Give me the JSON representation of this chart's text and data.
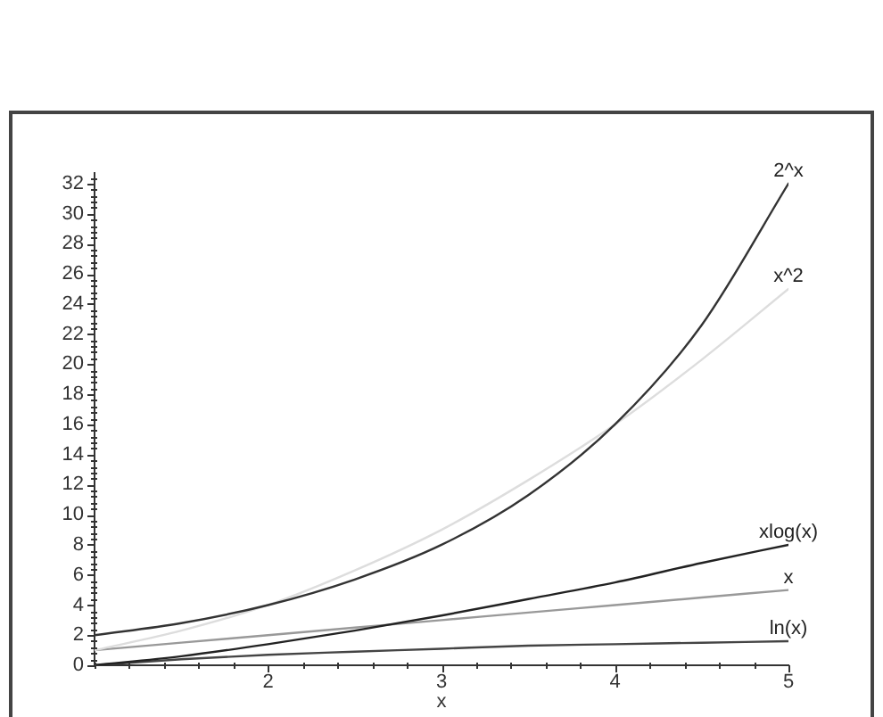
{
  "chart_data": {
    "type": "line",
    "xlabel": "x",
    "x": [
      1,
      1.5,
      2,
      2.5,
      3,
      3.5,
      4,
      4.5,
      5
    ],
    "series": [
      {
        "name": "2^x",
        "color": "#333333",
        "values": [
          2,
          2.8,
          4,
          5.7,
          8,
          11.3,
          16,
          22.6,
          32
        ]
      },
      {
        "name": "x^2",
        "color": "#dddddd",
        "values": [
          1,
          2.3,
          4,
          6.3,
          9,
          12.3,
          16,
          20.3,
          25
        ]
      },
      {
        "name": "xlog(x)",
        "color": "#222222",
        "values": [
          0,
          0.6,
          1.4,
          2.3,
          3.3,
          4.4,
          5.5,
          6.8,
          8.0
        ]
      },
      {
        "name": "x",
        "color": "#999999",
        "values": [
          1,
          1.5,
          2,
          2.5,
          3,
          3.5,
          4,
          4.5,
          5
        ]
      },
      {
        "name": "ln(x)",
        "color": "#444444",
        "values": [
          0,
          0.4,
          0.7,
          0.9,
          1.1,
          1.3,
          1.4,
          1.5,
          1.6
        ]
      }
    ],
    "xlim": [
      1,
      5
    ],
    "ylim": [
      0,
      32.7
    ],
    "xticks": [
      {
        "value": 1,
        "label": null
      },
      {
        "value": 1.2,
        "label": null
      },
      {
        "value": 1.4,
        "label": null
      },
      {
        "value": 1.6,
        "label": null
      },
      {
        "value": 1.8,
        "label": null
      },
      2,
      {
        "value": 2.2,
        "label": null
      },
      {
        "value": 2.4,
        "label": null
      },
      {
        "value": 2.6,
        "label": null
      },
      {
        "value": 2.8,
        "label": null
      },
      3,
      {
        "value": 3.2,
        "label": null
      },
      {
        "value": 3.4,
        "label": null
      },
      {
        "value": 3.6,
        "label": null
      },
      {
        "value": 3.8,
        "label": null
      },
      4,
      {
        "value": 4.2,
        "label": null
      },
      {
        "value": 4.4,
        "label": null
      },
      {
        "value": 4.6,
        "label": null
      },
      {
        "value": 4.8,
        "label": null
      },
      5
    ],
    "yticks": [
      0,
      {
        "value": 0.4,
        "label": null
      },
      {
        "value": 0.8,
        "label": null
      },
      {
        "value": 1.2,
        "label": null
      },
      {
        "value": 1.6,
        "label": null
      },
      2,
      {
        "value": 2.4,
        "label": null
      },
      {
        "value": 2.8,
        "label": null
      },
      {
        "value": 3.2,
        "label": null
      },
      {
        "value": 3.6,
        "label": null
      },
      4,
      {
        "value": 4.4,
        "label": null
      },
      {
        "value": 4.8,
        "label": null
      },
      {
        "value": 5.2,
        "label": null
      },
      {
        "value": 5.6,
        "label": null
      },
      6,
      {
        "value": 6.4,
        "label": null
      },
      {
        "value": 6.8,
        "label": null
      },
      {
        "value": 7.2,
        "label": null
      },
      {
        "value": 7.6,
        "label": null
      },
      8,
      {
        "value": 8.4,
        "label": null
      },
      {
        "value": 8.8,
        "label": null
      },
      {
        "value": 9.2,
        "label": null
      },
      {
        "value": 9.6,
        "label": null
      },
      10,
      {
        "value": 10.4,
        "label": null
      },
      {
        "value": 10.8,
        "label": null
      },
      {
        "value": 11.2,
        "label": null
      },
      {
        "value": 11.6,
        "label": null
      },
      12,
      {
        "value": 12.4,
        "label": null
      },
      {
        "value": 12.8,
        "label": null
      },
      {
        "value": 13.2,
        "label": null
      },
      {
        "value": 13.6,
        "label": null
      },
      14,
      {
        "value": 14.4,
        "label": null
      },
      {
        "value": 14.8,
        "label": null
      },
      {
        "value": 15.2,
        "label": null
      },
      {
        "value": 15.6,
        "label": null
      },
      16,
      {
        "value": 16.4,
        "label": null
      },
      {
        "value": 16.8,
        "label": null
      },
      {
        "value": 17.2,
        "label": null
      },
      {
        "value": 17.6,
        "label": null
      },
      18,
      {
        "value": 18.4,
        "label": null
      },
      {
        "value": 18.8,
        "label": null
      },
      {
        "value": 19.2,
        "label": null
      },
      {
        "value": 19.6,
        "label": null
      },
      20,
      {
        "value": 20.4,
        "label": null
      },
      {
        "value": 20.8,
        "label": null
      },
      {
        "value": 21.2,
        "label": null
      },
      {
        "value": 21.6,
        "label": null
      },
      22,
      {
        "value": 22.4,
        "label": null
      },
      {
        "value": 22.8,
        "label": null
      },
      {
        "value": 23.2,
        "label": null
      },
      {
        "value": 23.6,
        "label": null
      },
      24,
      {
        "value": 24.4,
        "label": null
      },
      {
        "value": 24.8,
        "label": null
      },
      {
        "value": 25.2,
        "label": null
      },
      {
        "value": 25.6,
        "label": null
      },
      26,
      {
        "value": 26.4,
        "label": null
      },
      {
        "value": 26.8,
        "label": null
      },
      {
        "value": 27.2,
        "label": null
      },
      {
        "value": 27.6,
        "label": null
      },
      28,
      {
        "value": 28.4,
        "label": null
      },
      {
        "value": 28.8,
        "label": null
      },
      {
        "value": 29.2,
        "label": null
      },
      {
        "value": 29.6,
        "label": null
      },
      30,
      {
        "value": 30.4,
        "label": null
      },
      {
        "value": 30.8,
        "label": null
      },
      {
        "value": 31.2,
        "label": null
      },
      {
        "value": 31.6,
        "label": null
      },
      32,
      {
        "value": 32.4,
        "label": null
      }
    ],
    "grid": false,
    "legend": false,
    "marker": "none",
    "line_style": "solid"
  }
}
